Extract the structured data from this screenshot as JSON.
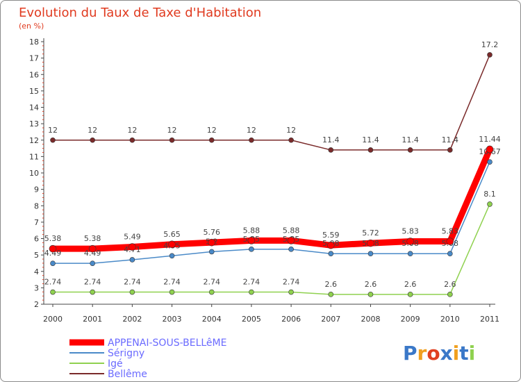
{
  "chart_data": {
    "type": "line",
    "title": "Evolution du Taux de Taxe d'Habitation",
    "subtitle": "(en %)",
    "x": [
      "2000",
      "2001",
      "2002",
      "2003",
      "2004",
      "2005",
      "2006",
      "2007",
      "2008",
      "2009",
      "2010",
      "2011"
    ],
    "ylim": [
      2,
      18
    ],
    "yticks": [
      "2",
      "3",
      "4",
      "5",
      "6",
      "7",
      "8",
      "9",
      "10",
      "11",
      "12",
      "13",
      "14",
      "15",
      "16",
      "17",
      "18"
    ],
    "grid": false,
    "legend_position": "bottom-left",
    "series": [
      {
        "name": "APPENAI-SOUS-BELLêME",
        "color": "#ff0000",
        "values": [
          5.38,
          5.38,
          5.49,
          5.65,
          5.76,
          5.88,
          5.88,
          5.59,
          5.72,
          5.83,
          5.83,
          11.44
        ],
        "labels": [
          "5.38",
          "5.38",
          "5.49",
          "5.65",
          "5.76",
          "5.88",
          "5.88",
          "5.59",
          "5.72",
          "5.83",
          "5.83",
          "11.44"
        ]
      },
      {
        "name": "Sérigny",
        "color": "#4a8ac8",
        "values": [
          4.49,
          4.49,
          4.71,
          4.95,
          5.2,
          5.35,
          5.35,
          5.08,
          5.08,
          5.08,
          5.08,
          10.67
        ],
        "labels": [
          "4.49",
          "4.49",
          "4.71",
          "4.95",
          "5.2",
          "5.35",
          "5.35",
          "5.08",
          "5.08",
          "5.08",
          "5.08",
          "10.67"
        ]
      },
      {
        "name": "Igé",
        "color": "#8fd14f",
        "values": [
          2.74,
          2.74,
          2.74,
          2.74,
          2.74,
          2.74,
          2.74,
          2.6,
          2.6,
          2.6,
          2.6,
          8.1
        ],
        "labels": [
          "2.74",
          "2.74",
          "2.74",
          "2.74",
          "2.74",
          "2.74",
          "2.74",
          "2.6",
          "2.6",
          "2.6",
          "2.6",
          "8.1"
        ]
      },
      {
        "name": "Bellême",
        "color": "#7a2a2a",
        "values": [
          12,
          12,
          12,
          12,
          12,
          12,
          12,
          11.4,
          11.4,
          11.4,
          11.4,
          17.2
        ],
        "labels": [
          "12",
          "12",
          "12",
          "12",
          "12",
          "12",
          "12",
          "11.4",
          "11.4",
          "11.4",
          "11.4",
          "17.2"
        ]
      }
    ]
  },
  "logo": {
    "text": "Proxiti",
    "colors": [
      "#3a78c8",
      "#f0a020",
      "#e04020",
      "#3a78c8",
      "#f0a020",
      "#3a78c8",
      "#8fd14f"
    ]
  }
}
